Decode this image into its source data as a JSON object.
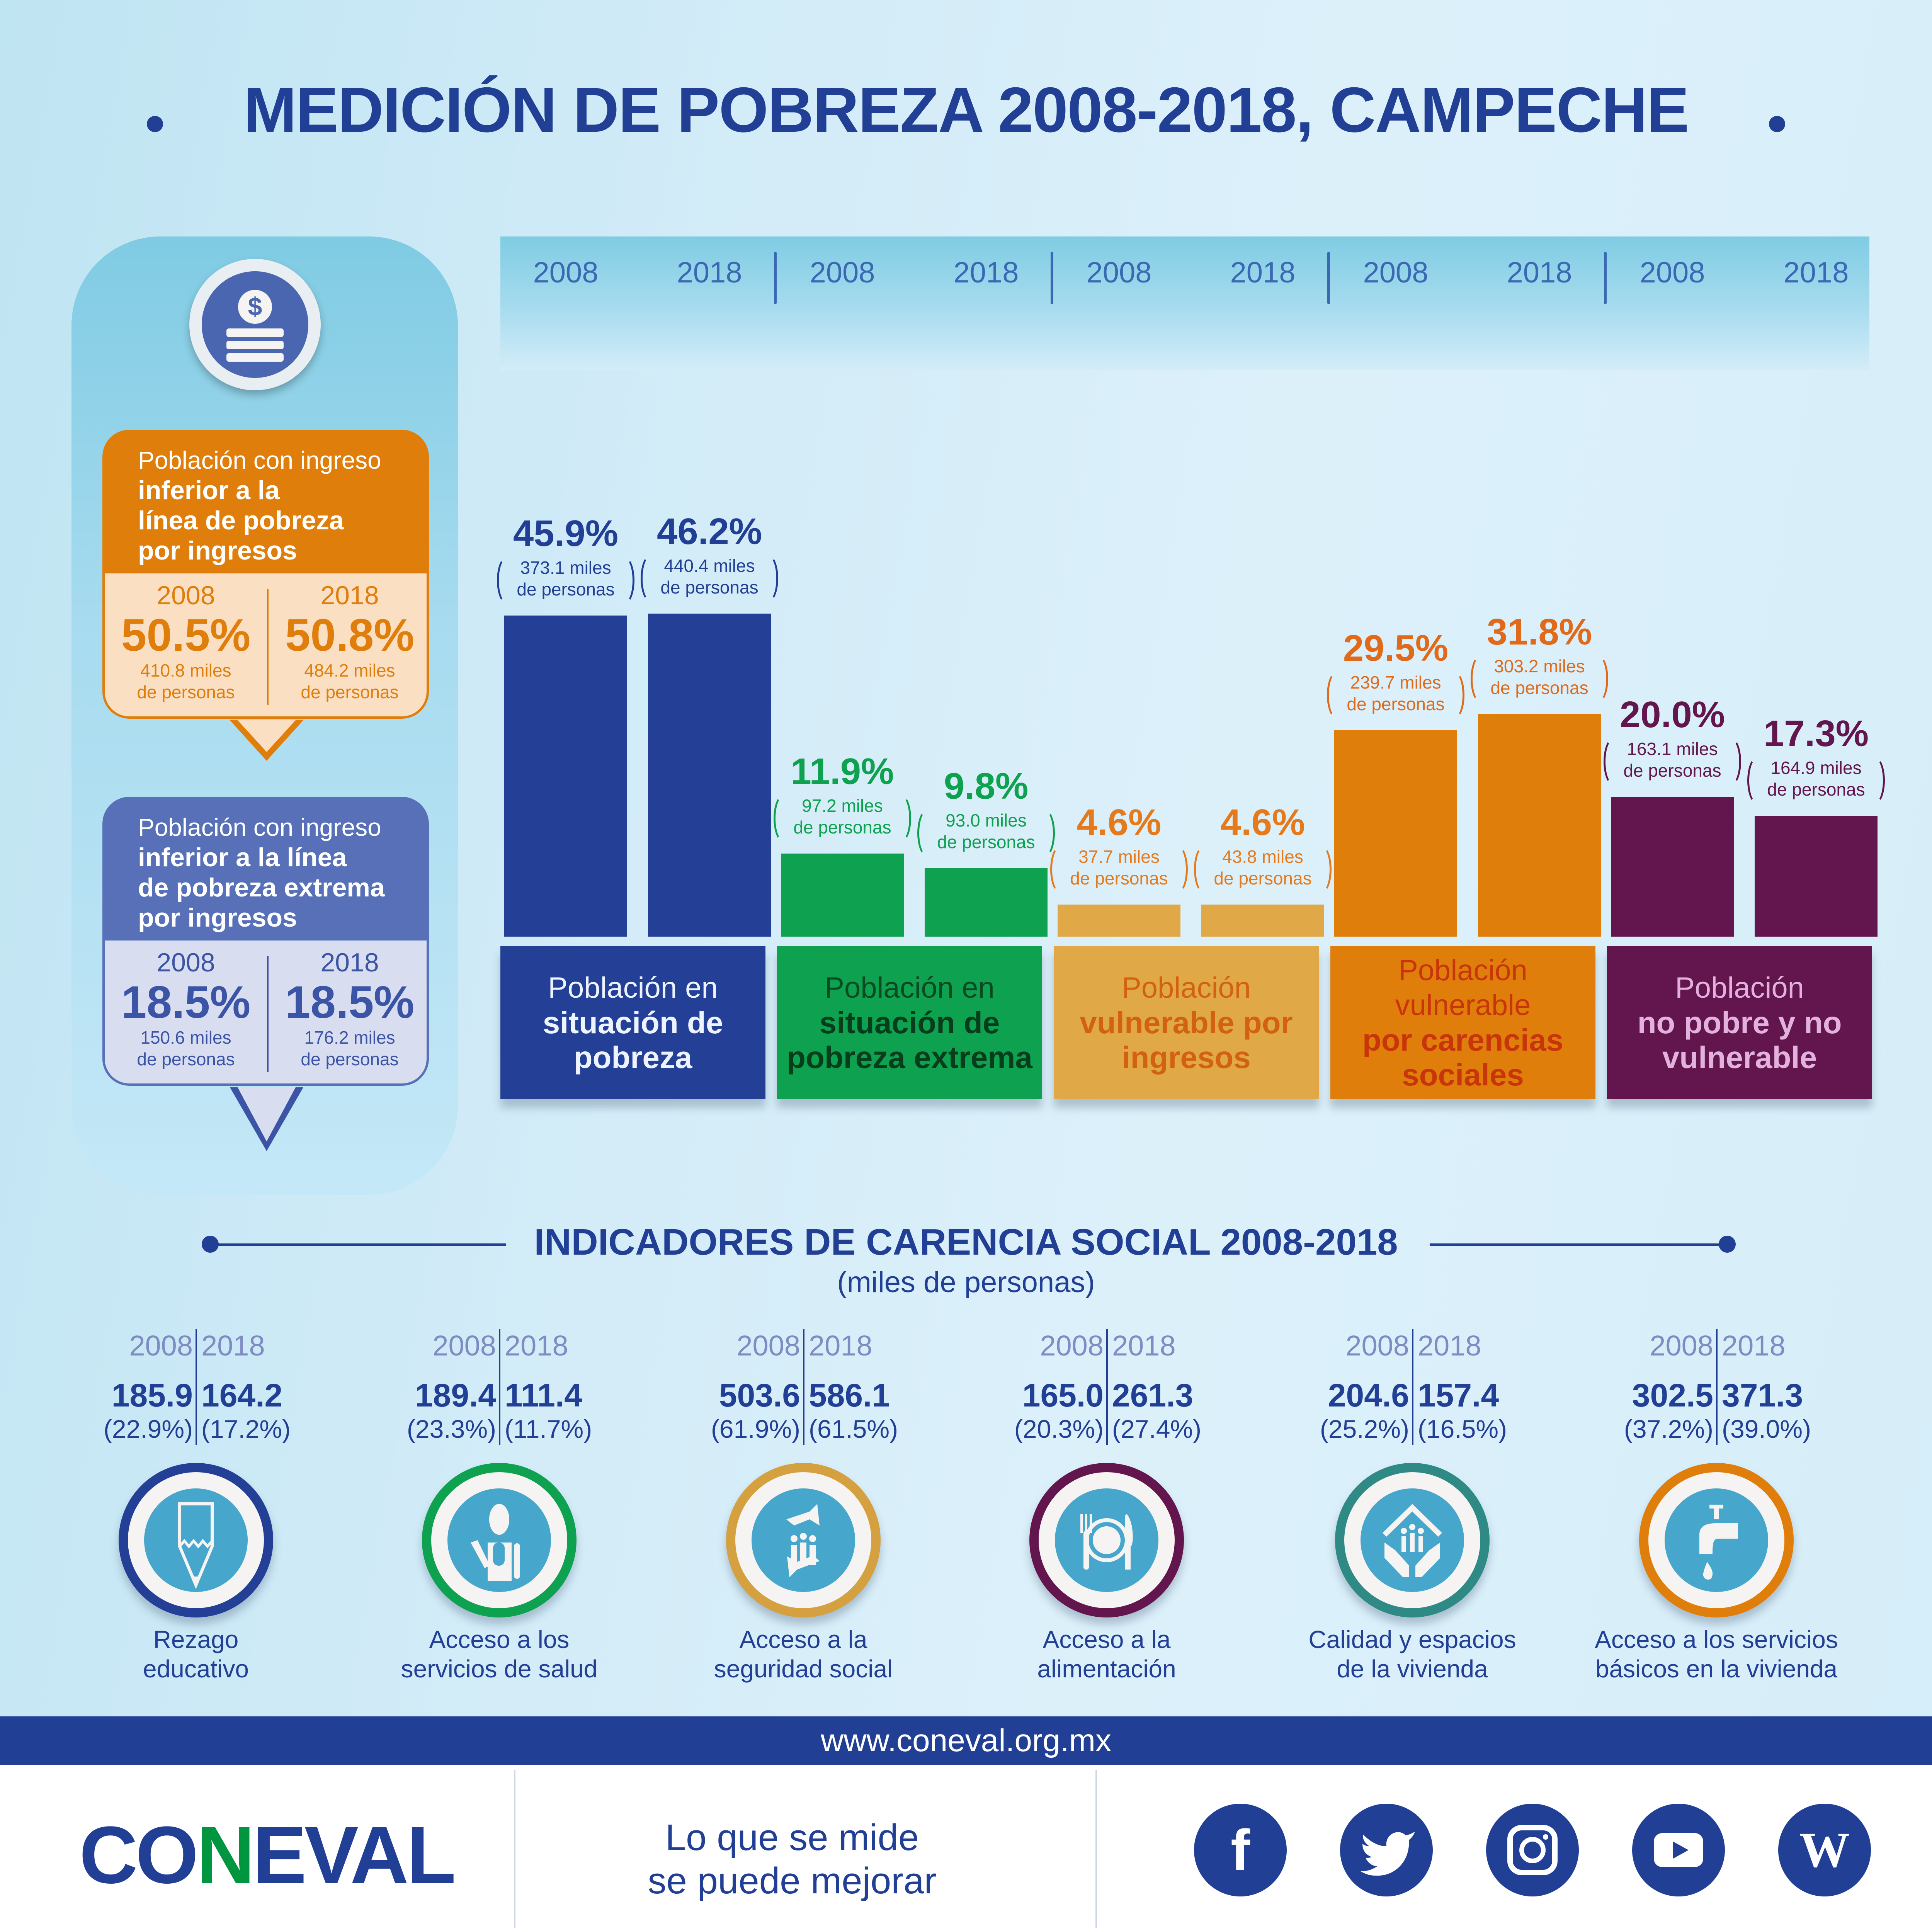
{
  "title": "MEDICIÓN DE POBREZA 2008-2018, CAMPECHE",
  "left_panel": {
    "icon": "money-coin-stack-icon",
    "income_line": {
      "label_light": "Población con ingreso",
      "label_bold_lines": [
        "inferior a la",
        "línea de pobreza",
        "por ingresos"
      ],
      "y2008": "2008",
      "y2018": "2018",
      "pct2008": "50.5%",
      "pct2018": "50.8%",
      "miles2008_a": "410.8 miles",
      "miles2008_b": "de personas",
      "miles2018_a": "484.2 miles",
      "miles2018_b": "de personas",
      "color": "#e07e0c"
    },
    "extreme_income_line": {
      "label_light": "Población con ingreso",
      "label_bold_lines": [
        "inferior a la línea",
        "de pobreza extrema",
        "por ingresos"
      ],
      "y2008": "2008",
      "y2018": "2018",
      "pct2008": "18.5%",
      "pct2018": "18.5%",
      "miles2008_a": "150.6 miles",
      "miles2008_b": "de personas",
      "miles2018_a": "176.2 miles",
      "miles2018_b": "de personas",
      "color": "#4a66b0"
    }
  },
  "chart_data": {
    "type": "bar",
    "title": "MEDICIÓN DE POBREZA 2008-2018, CAMPECHE",
    "years": [
      "2008",
      "2018"
    ],
    "ylabel": "%",
    "categories": [
      {
        "light": "Población en",
        "bold": [
          "situación de",
          "pobreza"
        ],
        "bold_first": false,
        "values": [
          45.9,
          46.2
        ],
        "pct_labels": [
          "45.9%",
          "46.2%"
        ],
        "miles": [
          "373.1 miles",
          "440.4 miles"
        ],
        "unit": "de personas",
        "color": "#233f96",
        "label_color": "#223f96",
        "box_text": "#eef4ff",
        "box_bold": "#eef4ff"
      },
      {
        "light": "Población en",
        "bold": [
          "situación de",
          "pobreza extrema"
        ],
        "bold_first": false,
        "values": [
          11.9,
          9.8
        ],
        "pct_labels": [
          "11.9%",
          "9.8%"
        ],
        "miles": [
          "97.2  miles",
          "93.0 miles"
        ],
        "unit": "de personas",
        "color": "#0ea14f",
        "label_color": "#0ea14f",
        "box_text": "#0a4a22",
        "box_bold": "#063d1b"
      },
      {
        "light": "Población",
        "bold": [
          "vulnerable por",
          "ingresos"
        ],
        "bold_first": false,
        "values": [
          4.6,
          4.6
        ],
        "pct_labels": [
          "4.6%",
          "4.6%"
        ],
        "miles": [
          "37.7  miles",
          "43.8 miles"
        ],
        "unit": "de personas",
        "color": "#e0a847",
        "label_color": "#e57a1c",
        "box_text": "#d2620f",
        "box_bold": "#d2620f"
      },
      {
        "light": "Población vulnerable",
        "bold": [
          "por carencias",
          "sociales"
        ],
        "bold_first": false,
        "values": [
          29.5,
          31.8
        ],
        "pct_labels": [
          "29.5%",
          "31.8%"
        ],
        "miles": [
          "239.7 miles",
          "303.2 miles"
        ],
        "unit": "de personas",
        "color": "#e07e0c",
        "label_color": "#e06a1a",
        "box_text": "#c9350a",
        "box_bold": "#c9350a"
      },
      {
        "light": "Población",
        "bold": [
          "no pobre y no",
          "vulnerable"
        ],
        "bold_first": false,
        "values": [
          20.0,
          17.3
        ],
        "pct_labels": [
          "20.0%",
          "17.3%"
        ],
        "miles": [
          "163.1 miles",
          "164.9 miles"
        ],
        "unit": "de personas",
        "color": "#63164d",
        "label_color": "#63164d",
        "box_text": "#e2b2dc",
        "box_bold": "#e2b2dc"
      }
    ],
    "grid": false
  },
  "indicators": {
    "title": "INDICADORES DE CARENCIA SOCIAL 2008-2018",
    "subtitle": "(miles de personas)",
    "y2008": "2008",
    "y2018": "2018",
    "items": [
      {
        "v2008": "185.9",
        "v2018": "164.2",
        "p2008": "(22.9%)",
        "p2018": "(17.2%)",
        "label": [
          "Rezago",
          "educativo"
        ],
        "icon": "pencil-icon",
        "ring": "#233f96"
      },
      {
        "v2008": "189.4",
        "v2018": "111.4",
        "p2008": "(23.3%)",
        "p2018": "(11.7%)",
        "label": [
          "Acceso a los",
          "servicios de salud"
        ],
        "icon": "doctor-icon",
        "ring": "#0ea14f"
      },
      {
        "v2008": "503.6",
        "v2018": "586.1",
        "p2008": "(61.9%)",
        "p2018": "(61.5%)",
        "label": [
          "Acceso a la",
          "seguridad social"
        ],
        "icon": "social-security-icon",
        "ring": "#d4a040"
      },
      {
        "v2008": "165.0",
        "v2018": "261.3",
        "p2008": "(20.3%)",
        "p2018": "(27.4%)",
        "label": [
          "Acceso a la",
          "alimentación"
        ],
        "icon": "plate-cutlery-icon",
        "ring": "#63164d"
      },
      {
        "v2008": "204.6",
        "v2018": "157.4",
        "p2008": "(25.2%)",
        "p2018": "(16.5%)",
        "label": [
          "Calidad y espacios",
          "de la vivienda"
        ],
        "icon": "house-hands-icon",
        "ring": "#2f8a85"
      },
      {
        "v2008": "302.5",
        "v2018": "371.3",
        "p2008": "(37.2%)",
        "p2018": "(39.0%)",
        "label": [
          "Acceso a los servicios",
          "básicos en la vivienda"
        ],
        "icon": "water-tap-icon",
        "ring": "#e07e0c"
      }
    ]
  },
  "footer": {
    "url": "www.coneval.org.mx",
    "logo": "CONEVAL",
    "slogan_1": "Lo que se mide",
    "slogan_2": "se puede mejorar",
    "social": [
      {
        "icon": "facebook-icon",
        "glyph": "f"
      },
      {
        "icon": "twitter-icon",
        "glyph": ""
      },
      {
        "icon": "instagram-icon",
        "glyph": ""
      },
      {
        "icon": "youtube-icon",
        "glyph": ""
      },
      {
        "icon": "wordpress-icon",
        "glyph": "W"
      }
    ]
  }
}
